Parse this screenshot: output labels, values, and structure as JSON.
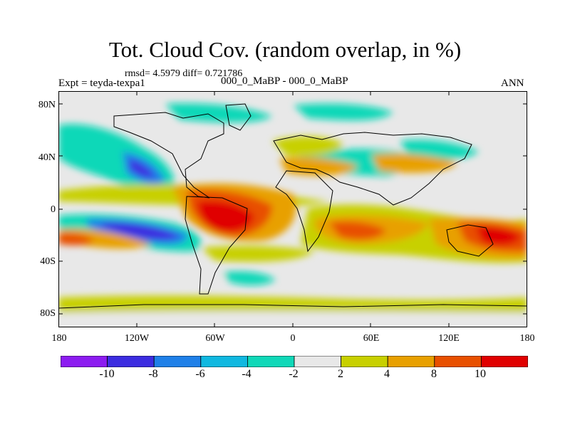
{
  "title": "Tot. Cloud Cov. (random overlap, in %)",
  "stats": "rmsd= 4.5979 diff= 0.721786",
  "expt": "Expt = teyda-texpa1",
  "case": "000_0_MaBP - 000_0_MaBP",
  "season": "ANN",
  "lat_labels": [
    "80N",
    "40N",
    "0",
    "40S",
    "80S"
  ],
  "lon_labels": [
    "180",
    "120W",
    "60W",
    "0",
    "60E",
    "120E",
    "180"
  ],
  "colorbar": {
    "labels": [
      "-10",
      "-8",
      "-6",
      "-4",
      "-2",
      "2",
      "4",
      "8",
      "10"
    ],
    "colors": [
      "#8c1cf0",
      "#3c2ce0",
      "#1f80e8",
      "#10b8e0",
      "#10d8b8",
      "#e8e8e8",
      "#c8d000",
      "#e8a000",
      "#e85000",
      "#e00000"
    ]
  }
}
